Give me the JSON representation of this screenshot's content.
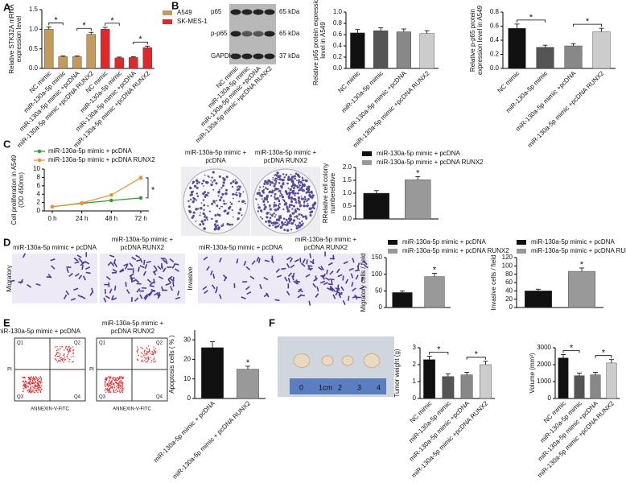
{
  "panel_letters": [
    "A",
    "B",
    "C",
    "D",
    "E",
    "F"
  ],
  "chart_data": [
    {
      "type": "bar",
      "ylabel": [
        "Relative STK32A mRNA",
        "expression level"
      ],
      "categories": [
        "NC mimic",
        "miR-130a-5p mimic",
        "miR-130a-5p mimic +pcDNA",
        "miR-130a-5p mimic +pcDNA RUNX2",
        "NC mimic",
        "miR-130a-5p mimic",
        "miR-130a-5p mimic +pcDNA",
        "miR-130a-5p mimic +pcDNA RUNX2"
      ],
      "values": [
        1.0,
        0.3,
        0.3,
        0.87,
        1.0,
        0.27,
        0.28,
        0.53
      ],
      "errors": [
        0.06,
        0.02,
        0.02,
        0.05,
        0.05,
        0.02,
        0.02,
        0.04
      ],
      "colors": [
        "#c49a5a",
        "#c49a5a",
        "#c49a5a",
        "#c49a5a",
        "#e3262b",
        "#e3262b",
        "#e3262b",
        "#e3262b"
      ],
      "legend": [
        {
          "name": "A549",
          "color": "#c49a5a"
        },
        {
          "name": "SK-MES-1",
          "color": "#e3262b"
        }
      ],
      "ylim": [
        0,
        1.5
      ],
      "yticks": [
        {
          "value": 0,
          "label": "0.0"
        },
        {
          "value": 0.5,
          "label": "0.5"
        },
        {
          "value": 1,
          "label": "1.0"
        },
        {
          "value": 1.5,
          "label": "1.5"
        }
      ],
      "annotations": [
        {
          "text": "*",
          "between": [
            0,
            1
          ]
        },
        {
          "text": "*",
          "between": [
            2,
            3
          ]
        },
        {
          "text": "*",
          "between": [
            4,
            5
          ]
        },
        {
          "text": "*",
          "between": [
            6,
            7
          ]
        }
      ]
    },
    {
      "type": "bar",
      "ylabel": [
        "Relative p65 protein expression",
        "level in A549"
      ],
      "categories": [
        "NC mimic",
        "miR-130a-5p mimic",
        "miR-130a-5p mimic +pcDNA",
        "miR-130a-5p mimic +pcDNA RUNX2"
      ],
      "values": [
        0.63,
        0.67,
        0.65,
        0.62
      ],
      "errors": [
        0.06,
        0.05,
        0.05,
        0.05
      ],
      "colors": [
        "#111111",
        "#555555",
        "#888888",
        "#cccccc"
      ],
      "ylim": [
        0,
        1.0
      ],
      "yticks": [
        {
          "value": 0,
          "label": "0.0"
        },
        {
          "value": 0.2,
          "label": "0.2"
        },
        {
          "value": 0.4,
          "label": "0.4"
        },
        {
          "value": 0.6,
          "label": "0.6"
        },
        {
          "value": 0.8,
          "label": "0.8"
        },
        {
          "value": 1,
          "label": "1.0"
        }
      ]
    },
    {
      "type": "bar",
      "ylabel": [
        "Relative p-p65 protein",
        "expression level in A549"
      ],
      "categories": [
        "NC mimic",
        "miR-130a-5p mimic",
        "miR-130a-5p mimic +pcDNA",
        "miR-130a-5p mimic +pcDNA RUNX2"
      ],
      "values": [
        0.57,
        0.3,
        0.32,
        0.52
      ],
      "errors": [
        0.06,
        0.03,
        0.03,
        0.05
      ],
      "colors": [
        "#111111",
        "#555555",
        "#888888",
        "#cccccc"
      ],
      "ylim": [
        0,
        0.8
      ],
      "yticks": [
        {
          "value": 0,
          "label": "0.0"
        },
        {
          "value": 0.2,
          "label": "0.2"
        },
        {
          "value": 0.4,
          "label": "0.4"
        },
        {
          "value": 0.6,
          "label": "0.6"
        },
        {
          "value": 0.8,
          "label": "0.8"
        }
      ],
      "annotations": [
        {
          "text": "*",
          "between": [
            0,
            1
          ]
        },
        {
          "text": "*",
          "between": [
            2,
            3
          ]
        }
      ]
    },
    {
      "type": "line",
      "ylabel": [
        "Cell proliferation in A549",
        "(OD 450nm)"
      ],
      "categories": [
        "0 h",
        "24 h",
        "48 h",
        "72 h"
      ],
      "series": [
        {
          "name": "miR-130a-5p mimic + pcDNA",
          "color": "#2ca02c",
          "values": [
            1.0,
            1.8,
            2.5,
            3.1
          ],
          "errors": [
            0.1,
            0.15,
            0.2,
            0.3
          ]
        },
        {
          "name": "miR-130a-5p mimic + pcDNA RUNX2",
          "color": "#f28e2b",
          "values": [
            1.0,
            1.9,
            3.8,
            7.9
          ],
          "errors": [
            0.1,
            0.15,
            0.3,
            0.6
          ]
        }
      ],
      "ylim": [
        0,
        10
      ],
      "yticks": [
        0,
        2,
        4,
        6,
        8,
        10
      ],
      "annotations": [
        {
          "text": "*",
          "between": [
            0,
            1
          ]
        }
      ]
    },
    {
      "type": "bar",
      "ylabel": [
        "RRelative cell colony",
        "numberelative"
      ],
      "values": [
        1.0,
        1.52
      ],
      "errors": [
        0.1,
        0.12
      ],
      "colors": [
        "#111111",
        "#999999"
      ],
      "legend": [
        {
          "name": "miR-130a-5p mimic + pcDNA",
          "color": "#111111"
        },
        {
          "name": "miR-130a-5p mimic + pcDNA RUNX2",
          "color": "#999999"
        }
      ],
      "ylim": [
        0,
        2.0
      ],
      "yticks": [
        {
          "value": 0,
          "label": "0.0"
        },
        {
          "value": 0.5,
          "label": "0.5"
        },
        {
          "value": 1,
          "label": "1.0"
        },
        {
          "value": 1.5,
          "label": "1.5"
        },
        {
          "value": 2,
          "label": "2.0"
        }
      ],
      "annotations": [
        {
          "text": "*",
          "over": 1
        }
      ]
    },
    {
      "type": "bar",
      "ylabel": [
        "Migratory cells / field"
      ],
      "values": [
        45,
        93
      ],
      "errors": [
        5,
        10
      ],
      "colors": [
        "#111111",
        "#999999"
      ],
      "legend": [
        {
          "name": "miR-130a-5p mimic + pcDNA",
          "color": "#111111"
        },
        {
          "name": "miR-130a-5p mimic + pcDNA RUNX2",
          "color": "#999999"
        }
      ],
      "ylim": [
        0,
        150
      ],
      "yticks": [
        0,
        50,
        100,
        150
      ],
      "annotations": [
        {
          "text": "*",
          "over": 1
        }
      ]
    },
    {
      "type": "bar",
      "ylabel": [
        "Invasive cells / field"
      ],
      "values": [
        40,
        87
      ],
      "errors": [
        4,
        8
      ],
      "colors": [
        "#111111",
        "#999999"
      ],
      "legend": [
        {
          "name": "miR-130a-5p mimic + pcDNA",
          "color": "#111111"
        },
        {
          "name": "miR-130a-5p mimic + pcDNA RUNX2",
          "color": "#999999"
        }
      ],
      "ylim": [
        0,
        120
      ],
      "yticks": [
        0,
        20,
        40,
        60,
        80,
        100,
        120
      ],
      "annotations": [
        {
          "text": "*",
          "over": 1
        }
      ]
    },
    {
      "type": "bar",
      "ylabel": [
        "Apoptosis cells ( % )"
      ],
      "categories": [
        "miR-130a-5p mimic + pcDNA",
        "miR-130a-5p mimic + pcDNA RUNX2"
      ],
      "values": [
        26,
        15
      ],
      "errors": [
        3,
        1.5
      ],
      "colors": [
        "#111111",
        "#999999"
      ],
      "ylim": [
        0,
        35
      ],
      "yticks": [
        0,
        10,
        20,
        30
      ],
      "annotations": [
        {
          "text": "*",
          "over": 1
        }
      ]
    },
    {
      "type": "bar",
      "ylabel": [
        "Tumor weight (g)"
      ],
      "categories": [
        "NC mimic",
        "miR-130a-5p mimic",
        "miR-130a-5p mimic +pcDNA",
        "miR-130a-5p mimic +pcDNA RUNX2"
      ],
      "values": [
        2.3,
        1.3,
        1.4,
        2.0
      ],
      "errors": [
        0.2,
        0.15,
        0.15,
        0.2
      ],
      "colors": [
        "#111111",
        "#555555",
        "#888888",
        "#cccccc"
      ],
      "ylim": [
        0,
        3
      ],
      "yticks": [
        0,
        1,
        2,
        3
      ],
      "annotations": [
        {
          "text": "*",
          "between": [
            0,
            1
          ]
        },
        {
          "text": "*",
          "between": [
            2,
            3
          ]
        }
      ]
    },
    {
      "type": "bar",
      "ylabel": [
        "Volume (mm³)"
      ],
      "categories": [
        "NC mimic",
        "miR-130a-5p mimic",
        "miR-130a-5p mimic +pcDNA",
        "miR-130a-5p mimic +pcDNA RUNX2"
      ],
      "values": [
        2400,
        1350,
        1400,
        2100
      ],
      "errors": [
        200,
        150,
        150,
        200
      ],
      "colors": [
        "#111111",
        "#555555",
        "#888888",
        "#cccccc"
      ],
      "ylim": [
        0,
        3000
      ],
      "yticks": [
        0,
        1000,
        2000,
        3000
      ],
      "annotations": [
        {
          "text": "*",
          "between": [
            0,
            1
          ]
        },
        {
          "text": "*",
          "between": [
            2,
            3
          ]
        }
      ]
    }
  ],
  "blot": {
    "proteins": [
      "p65",
      "p-p65",
      "GAPDH"
    ],
    "sizes": [
      "65 kDa",
      "65 kDa",
      "37 kDa"
    ],
    "lanes": [
      "NC mimic",
      "miR-130a-5p mimic",
      "miR-130a-5p mimic +pcDNA",
      "miR-130a-5p mimic +pcDNA RUNX2"
    ]
  },
  "colony": {
    "labels": [
      [
        "miR-130a-5p mimic +",
        "pcDNA"
      ],
      [
        "miR-130a-5p mimic +",
        "pcDNA RUNX2"
      ]
    ]
  },
  "transwell": {
    "rows": [
      "Migratory",
      "Invasive"
    ],
    "labels": [
      [
        "miR-130a-5p mimic + pcDNA"
      ],
      [
        "miR-130a-5p mimic +",
        "pcDNA RUNX2"
      ]
    ]
  },
  "flow": {
    "labels": [
      [
        "miR-130a-5p mimic + pcDNA"
      ],
      [
        "miR-130a-5p mimic +",
        "pcDNA RUNX2"
      ]
    ],
    "quadrants": [
      "Q1",
      "Q2",
      "Q3",
      "Q4"
    ],
    "y_axis": "PI",
    "x_axis": "ANNEXIN-V-FITC"
  },
  "tumor": {
    "ruler": [
      "0",
      "1cm",
      "2",
      "3",
      "4"
    ]
  }
}
